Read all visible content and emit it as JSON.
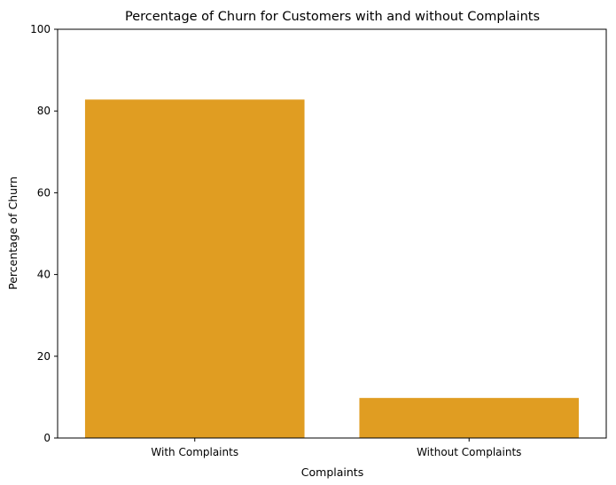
{
  "chart_data": {
    "type": "bar",
    "title": "Percentage of Churn for Customers with and without Complaints",
    "xlabel": "Complaints",
    "ylabel": "Percentage of Churn",
    "categories": [
      "With Complaints",
      "Without Complaints"
    ],
    "values": [
      82.8,
      9.8
    ],
    "ylim": [
      0,
      100
    ],
    "yticks": [
      0,
      20,
      40,
      60,
      80,
      100
    ],
    "bar_color": "#E09D22",
    "grid": false,
    "legend": "none"
  }
}
